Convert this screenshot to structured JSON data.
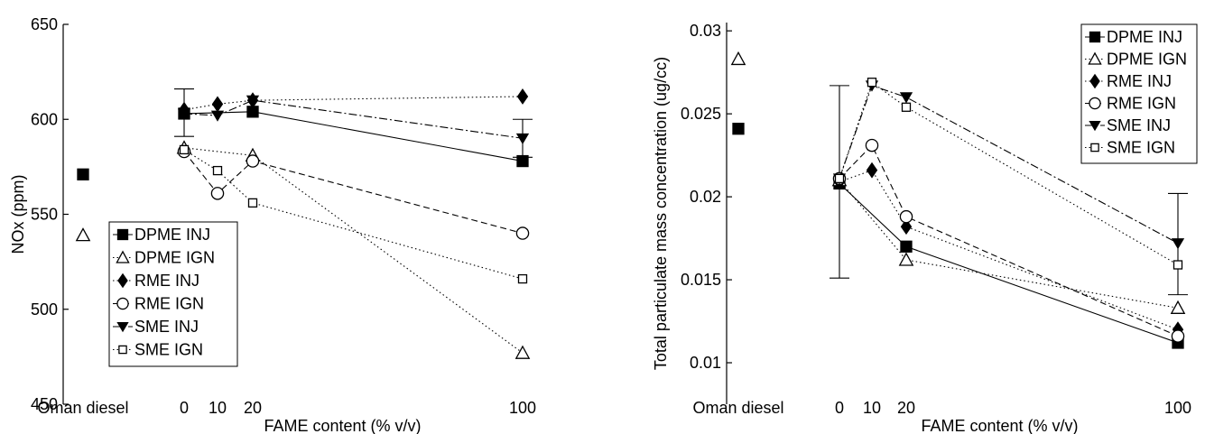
{
  "chart_data": [
    {
      "type": "scatter",
      "ylabel": "NOx (ppm)",
      "xlabel": "FAME content (% v/v)",
      "reference_label": "Oman diesel",
      "ylim": [
        450,
        650
      ],
      "yticks": [
        450,
        500,
        550,
        600,
        650
      ],
      "xticks": [
        0,
        10,
        20,
        100
      ],
      "grid": false,
      "legend_position": "bottom-center",
      "reference": [
        {
          "name": "DPME INJ",
          "value": 571
        },
        {
          "name": "DPME IGN",
          "value": 539
        }
      ],
      "series": [
        {
          "name": "DPME INJ",
          "marker": "square-filled",
          "line": "solid",
          "x": [
            0,
            20,
            100
          ],
          "y": [
            603,
            604,
            578
          ],
          "error": {
            "x": 0,
            "low": 591,
            "high": 616
          }
        },
        {
          "name": "DPME IGN",
          "marker": "triangle-open",
          "line": "dotted",
          "x": [
            0,
            20,
            100
          ],
          "y": [
            585,
            581,
            477
          ]
        },
        {
          "name": "RME INJ",
          "marker": "diamond-filled",
          "line": "dotted",
          "x": [
            0,
            10,
            20,
            100
          ],
          "y": [
            605,
            608,
            610,
            612
          ]
        },
        {
          "name": "RME IGN",
          "marker": "circle-open",
          "line": "dashed",
          "x": [
            0,
            10,
            20,
            100
          ],
          "y": [
            583,
            561,
            578,
            540
          ]
        },
        {
          "name": "SME INJ",
          "marker": "triangle-down-filled",
          "line": "dashdot",
          "x": [
            0,
            10,
            20,
            100
          ],
          "y": [
            603,
            602,
            610,
            590
          ],
          "error": {
            "x": 100,
            "low": 580,
            "high": 600
          }
        },
        {
          "name": "SME IGN",
          "marker": "square-open",
          "line": "dotted",
          "x": [
            0,
            10,
            20,
            100
          ],
          "y": [
            584,
            573,
            556,
            516
          ]
        }
      ]
    },
    {
      "type": "scatter",
      "ylabel": "Total particulate mass concentration (ug/cc)",
      "xlabel": "FAME content (% v/v)",
      "reference_label": "Oman diesel",
      "ylim": [
        0.0075,
        0.0305
      ],
      "yticks": [
        0.01,
        0.015,
        0.02,
        0.025,
        0.03
      ],
      "ytick_labels": [
        "0.01",
        "0.015",
        "0.02",
        "0.025",
        "0.03"
      ],
      "xticks": [
        0,
        10,
        20,
        100
      ],
      "grid": false,
      "legend_position": "top-right",
      "reference": [
        {
          "name": "DPME INJ",
          "value": 0.0241
        },
        {
          "name": "DPME IGN",
          "value": 0.0283
        }
      ],
      "series": [
        {
          "name": "DPME INJ",
          "marker": "square-filled",
          "line": "solid",
          "x": [
            0,
            20,
            100
          ],
          "y": [
            0.0208,
            0.017,
            0.0112
          ],
          "error": {
            "x": 0,
            "low": 0.0151,
            "high": 0.0267
          }
        },
        {
          "name": "DPME IGN",
          "marker": "triangle-open",
          "line": "dotted",
          "x": [
            0,
            20,
            100
          ],
          "y": [
            0.021,
            0.0162,
            0.0133
          ]
        },
        {
          "name": "RME INJ",
          "marker": "diamond-filled",
          "line": "dotted",
          "x": [
            0,
            10,
            20,
            100
          ],
          "y": [
            0.0209,
            0.0216,
            0.0182,
            0.012
          ]
        },
        {
          "name": "RME IGN",
          "marker": "circle-open",
          "line": "dashed",
          "x": [
            0,
            10,
            20,
            100
          ],
          "y": [
            0.0211,
            0.0231,
            0.0188,
            0.0116
          ]
        },
        {
          "name": "SME INJ",
          "marker": "triangle-down-filled",
          "line": "dashdot",
          "x": [
            0,
            10,
            20,
            100
          ],
          "y": [
            0.0211,
            0.0267,
            0.026,
            0.0172
          ],
          "error": {
            "x": 100,
            "low": 0.0141,
            "high": 0.0202
          }
        },
        {
          "name": "SME IGN",
          "marker": "square-open",
          "line": "dotted",
          "x": [
            0,
            10,
            20,
            100
          ],
          "y": [
            0.0211,
            0.0269,
            0.0254,
            0.0159
          ]
        }
      ]
    }
  ]
}
